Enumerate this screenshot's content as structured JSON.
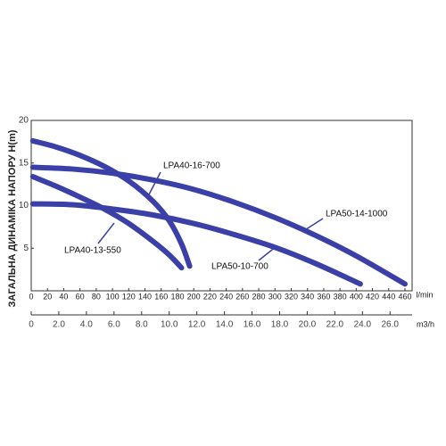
{
  "chart_data": {
    "type": "line",
    "ylabel": "ЗАГАЛЬНА ДИНАМІКА НАПОРУ H(m)",
    "xlabel": "l/min",
    "x2label": "m3/h",
    "xlim": [
      0,
      460
    ],
    "xticks": [
      0,
      20,
      40,
      60,
      80,
      100,
      120,
      140,
      160,
      180,
      200,
      220,
      240,
      260,
      280,
      300,
      320,
      340,
      360,
      380,
      400,
      420,
      440,
      460
    ],
    "ylim": [
      0,
      20
    ],
    "yticks": [
      5,
      10,
      15,
      20
    ],
    "x2lim": [
      0,
      27.6
    ],
    "x2ticks": [
      0,
      {
        "value": 2,
        "label": "2.0"
      },
      {
        "value": 4,
        "label": "4.0"
      },
      {
        "value": 6,
        "label": "6.0"
      },
      {
        "value": 8,
        "label": "8.0"
      },
      {
        "value": 10,
        "label": "10.0"
      },
      {
        "value": 12,
        "label": "12.0"
      },
      {
        "value": 14,
        "label": "14.0"
      },
      {
        "value": 16,
        "label": "16.0"
      },
      {
        "value": 18,
        "label": "18.0"
      },
      {
        "value": 20,
        "label": "20.0"
      },
      {
        "value": 22,
        "label": "22.0"
      },
      {
        "value": 24,
        "label": "24.0"
      },
      {
        "value": 26,
        "label": "26.0"
      }
    ],
    "grid": false,
    "series": [
      {
        "name": "LPA40-16-700",
        "color": "#3b3fa8",
        "x": [
          2,
          30,
          60,
          90,
          120,
          150,
          170,
          185,
          195
        ],
        "values": [
          17.6,
          16.9,
          15.9,
          14.6,
          12.9,
          10.5,
          8.2,
          5.5,
          2.9
        ]
      },
      {
        "name": "LPA50-14-1000",
        "color": "#3b3fa8",
        "x": [
          2,
          50,
          100,
          150,
          200,
          250,
          300,
          350,
          400,
          460
        ],
        "values": [
          14.5,
          14.3,
          13.8,
          13.0,
          11.9,
          10.4,
          8.6,
          6.5,
          4.1,
          0.8
        ]
      },
      {
        "name": "LPA40-13-550",
        "color": "#3b3fa8",
        "x": [
          2,
          30,
          60,
          90,
          120,
          150,
          170,
          185
        ],
        "values": [
          13.4,
          12.3,
          11.0,
          9.6,
          7.9,
          5.8,
          4.2,
          2.7
        ]
      },
      {
        "name": "LPA50-10-700",
        "color": "#3b3fa8",
        "x": [
          2,
          50,
          100,
          150,
          200,
          250,
          300,
          350,
          405
        ],
        "values": [
          10.2,
          10.1,
          9.6,
          8.9,
          7.9,
          6.6,
          5.1,
          3.2,
          0.8
        ]
      }
    ]
  }
}
